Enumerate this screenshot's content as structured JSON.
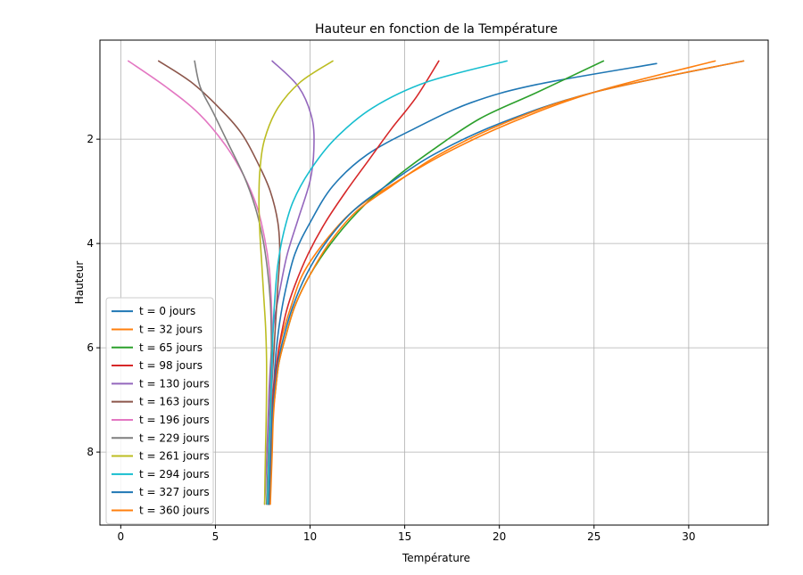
{
  "chart_data": {
    "type": "line",
    "title": "Hauteur en fonction de la Température",
    "xlabel": "Température",
    "ylabel": "Hauteur",
    "xlim": [
      -1.1,
      34.2
    ],
    "ylim": [
      9.4,
      0.1
    ],
    "y_inverted": true,
    "xticks": [
      0,
      5,
      10,
      15,
      20,
      25,
      30
    ],
    "yticks": [
      2,
      4,
      6,
      8
    ],
    "grid": true,
    "legend_position": "lower-left",
    "series": [
      {
        "name": "t = 0 jours",
        "color": "#1f77b4",
        "x": [
          28.3,
          22.0,
          18.5,
          15.5,
          13.0,
          11.2,
          10.0,
          9.2,
          8.7,
          8.4,
          8.2,
          8.1,
          8.0,
          7.95,
          7.9,
          7.85
        ],
        "y": [
          0.55,
          0.95,
          1.3,
          1.8,
          2.3,
          2.9,
          3.6,
          4.2,
          4.9,
          5.5,
          6.1,
          6.6,
          7.2,
          7.8,
          8.4,
          9.0
        ]
      },
      {
        "name": "t = 32 jours",
        "color": "#ff7f0e",
        "x": [
          31.4,
          25.0,
          20.5,
          17.0,
          14.2,
          12.2,
          10.7,
          9.6,
          9.0,
          8.5,
          8.25,
          8.1,
          8.0,
          7.95,
          7.9,
          7.85
        ],
        "y": [
          0.5,
          1.1,
          1.7,
          2.3,
          2.9,
          3.4,
          4.0,
          4.6,
          5.2,
          5.8,
          6.3,
          6.9,
          7.4,
          8.0,
          8.5,
          9.0
        ]
      },
      {
        "name": "t = 65 jours",
        "color": "#2ca02c",
        "x": [
          25.5,
          22.0,
          19.0,
          16.5,
          14.3,
          12.5,
          11.1,
          10.0,
          9.2,
          8.7,
          8.35,
          8.15,
          8.0,
          7.95,
          7.9,
          7.85
        ],
        "y": [
          0.5,
          1.1,
          1.6,
          2.2,
          2.8,
          3.4,
          4.0,
          4.6,
          5.2,
          5.8,
          6.3,
          6.9,
          7.4,
          8.0,
          8.5,
          9.0
        ]
      },
      {
        "name": "t = 98 jours",
        "color": "#d62728",
        "x": [
          16.8,
          15.6,
          14.3,
          13.1,
          11.9,
          10.8,
          9.9,
          9.2,
          8.75,
          8.4,
          8.2,
          8.05,
          7.95,
          7.9,
          7.85,
          7.8
        ],
        "y": [
          0.5,
          1.2,
          1.8,
          2.4,
          3.0,
          3.6,
          4.2,
          4.8,
          5.3,
          5.9,
          6.4,
          6.9,
          7.5,
          8.0,
          8.5,
          9.0
        ]
      },
      {
        "name": "t = 130 jours",
        "color": "#9467bd",
        "x": [
          8.0,
          9.4,
          10.1,
          10.2,
          10.0,
          9.4,
          8.8,
          8.4,
          8.1,
          7.95,
          7.85,
          7.8,
          7.75,
          7.7,
          7.65,
          7.6
        ],
        "y": [
          0.5,
          1.0,
          1.6,
          2.2,
          2.8,
          3.5,
          4.2,
          4.9,
          5.5,
          6.1,
          6.7,
          7.2,
          7.7,
          8.2,
          8.6,
          9.0
        ]
      },
      {
        "name": "t = 163 jours",
        "color": "#8c564b",
        "x": [
          2.0,
          3.7,
          5.2,
          6.4,
          7.3,
          7.9,
          8.3,
          8.4,
          8.3,
          8.2,
          8.1,
          8.0,
          7.95,
          7.9,
          7.85,
          7.8
        ],
        "y": [
          0.5,
          0.9,
          1.4,
          1.9,
          2.5,
          3.0,
          3.6,
          4.2,
          4.8,
          5.4,
          6.0,
          6.6,
          7.2,
          7.8,
          8.4,
          9.0
        ]
      },
      {
        "name": "t = 196 jours",
        "color": "#e377c2",
        "x": [
          0.4,
          2.4,
          4.1,
          5.5,
          6.5,
          7.2,
          7.6,
          7.85,
          7.95,
          8.0,
          8.0,
          7.95,
          7.9,
          7.85,
          7.8,
          7.75
        ],
        "y": [
          0.5,
          1.0,
          1.5,
          2.1,
          2.7,
          3.3,
          3.9,
          4.5,
          5.1,
          5.7,
          6.3,
          6.9,
          7.5,
          8.0,
          8.5,
          9.0
        ]
      },
      {
        "name": "t = 229 jours",
        "color": "#7f7f7f",
        "x": [
          3.9,
          4.2,
          4.9,
          5.7,
          6.5,
          7.1,
          7.5,
          7.75,
          7.9,
          7.95,
          7.95,
          7.9,
          7.85,
          7.8,
          7.75,
          7.7
        ],
        "y": [
          0.5,
          1.0,
          1.5,
          2.1,
          2.7,
          3.3,
          3.9,
          4.5,
          5.1,
          5.7,
          6.3,
          6.9,
          7.5,
          8.0,
          8.5,
          9.0
        ]
      },
      {
        "name": "t = 261 jours",
        "color": "#bcbd22",
        "x": [
          11.2,
          9.5,
          8.3,
          7.6,
          7.35,
          7.3,
          7.35,
          7.45,
          7.55,
          7.65,
          7.7,
          7.7,
          7.68,
          7.65,
          7.62,
          7.6
        ],
        "y": [
          0.5,
          0.9,
          1.4,
          2.0,
          2.6,
          3.2,
          3.8,
          4.4,
          5.0,
          5.6,
          6.2,
          6.8,
          7.4,
          7.9,
          8.5,
          9.0
        ]
      },
      {
        "name": "t = 294 jours",
        "color": "#17becf",
        "x": [
          20.4,
          16.2,
          13.3,
          11.3,
          10.0,
          9.1,
          8.6,
          8.3,
          8.15,
          8.05,
          8.0,
          7.95,
          7.9,
          7.85,
          7.8,
          7.75
        ],
        "y": [
          0.5,
          0.9,
          1.4,
          2.0,
          2.6,
          3.2,
          3.8,
          4.4,
          5.0,
          5.6,
          6.2,
          6.8,
          7.4,
          7.9,
          8.5,
          9.0
        ]
      },
      {
        "name": "t = 327 jours",
        "color": "#1f77b4",
        "x": [
          32.9,
          25.0,
          20.0,
          16.5,
          14.0,
          12.2,
          10.8,
          9.8,
          9.1,
          8.6,
          8.3,
          8.1,
          8.0,
          7.95,
          7.9,
          7.85
        ],
        "y": [
          0.5,
          1.1,
          1.7,
          2.3,
          2.9,
          3.4,
          4.0,
          4.6,
          5.2,
          5.8,
          6.3,
          6.9,
          7.4,
          8.0,
          8.5,
          9.0
        ]
      },
      {
        "name": "t = 360 jours",
        "color": "#ff7f0e",
        "x": [
          32.9,
          25.0,
          20.2,
          16.8,
          14.3,
          12.4,
          11.0,
          10.0,
          9.2,
          8.7,
          8.35,
          8.15,
          8.05,
          8.0,
          7.95,
          7.9
        ],
        "y": [
          0.5,
          1.1,
          1.7,
          2.3,
          2.9,
          3.4,
          4.0,
          4.6,
          5.2,
          5.8,
          6.3,
          6.9,
          7.4,
          8.0,
          8.5,
          9.0
        ]
      }
    ]
  }
}
